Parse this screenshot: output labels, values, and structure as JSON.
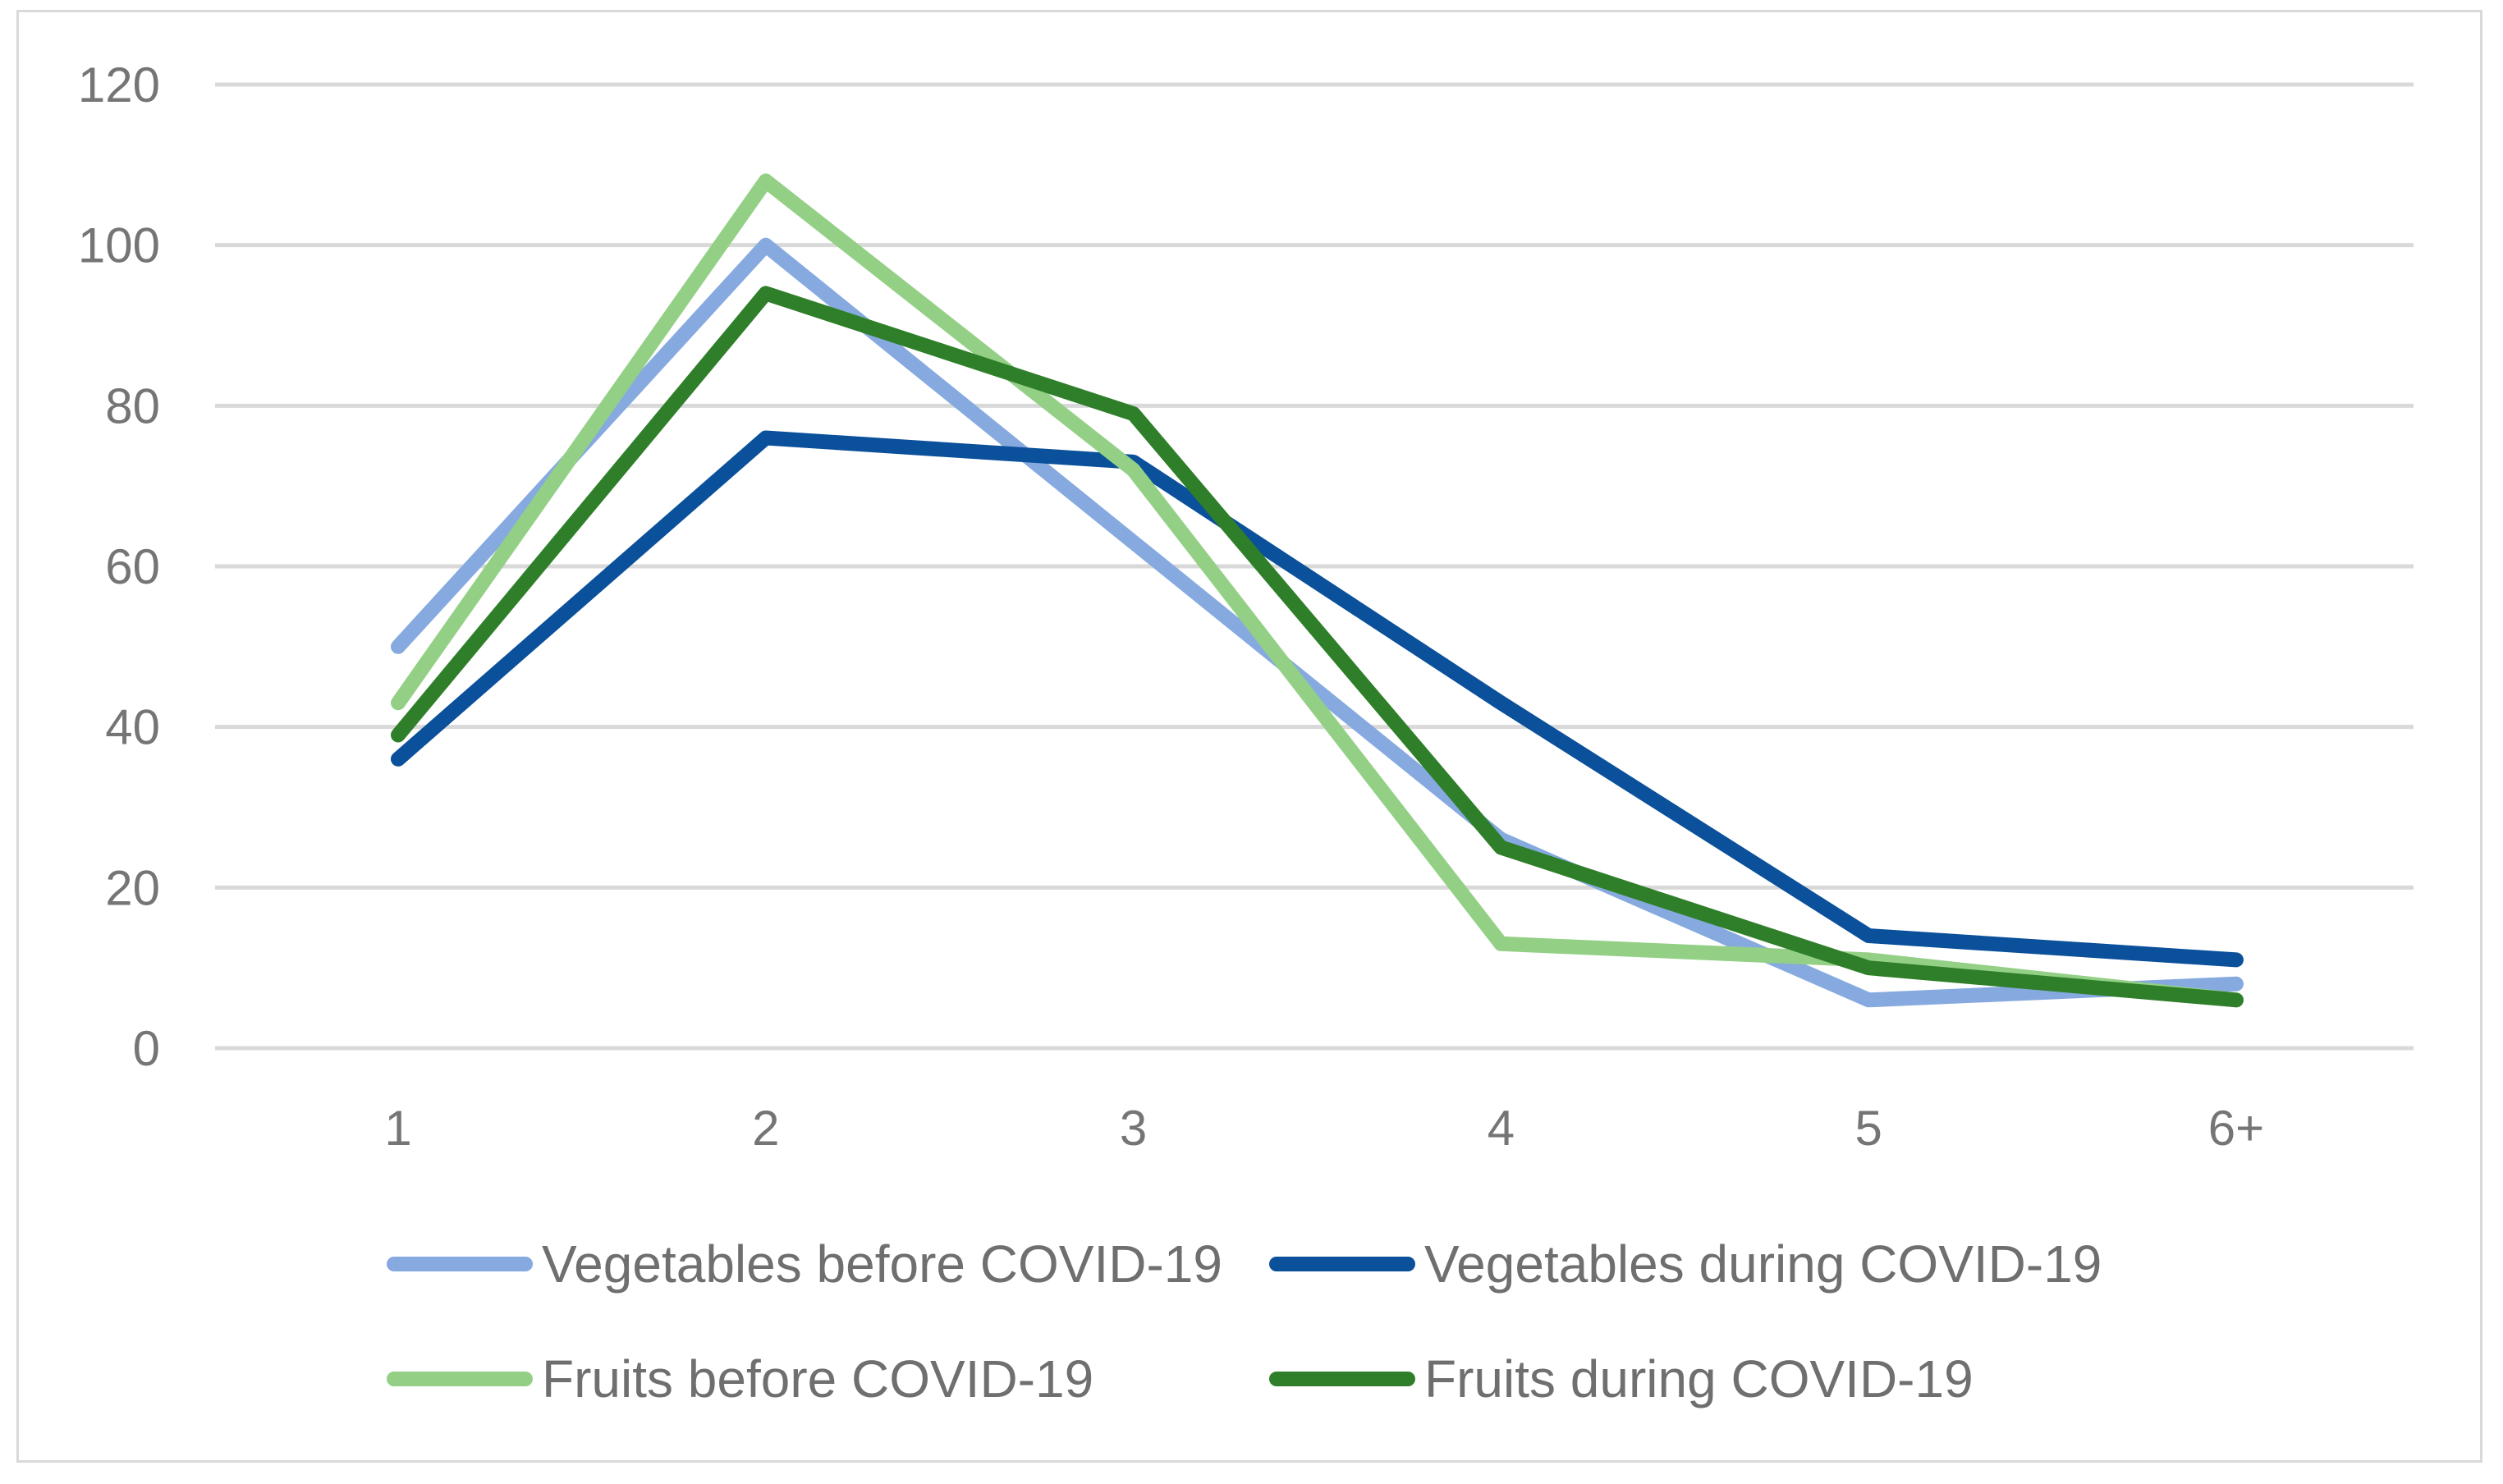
{
  "chart_data": {
    "type": "line",
    "title": "",
    "xlabel": "",
    "ylabel": "",
    "categories": [
      "1",
      "2",
      "3",
      "4",
      "5",
      "6+"
    ],
    "ylim": [
      0,
      120
    ],
    "yticks": [
      "0",
      "20",
      "40",
      "60",
      "80",
      "100",
      "120"
    ],
    "grid": true,
    "legend_position": "bottom",
    "series": [
      {
        "name": "Vegetables before COVID-19",
        "color": "#86aadf",
        "values": [
          50,
          100,
          63,
          26,
          6,
          8
        ]
      },
      {
        "name": "Vegetables during COVID-19",
        "color": "#0a509a",
        "values": [
          36,
          76,
          73,
          43,
          14,
          11
        ]
      },
      {
        "name": "Fruits before COVID-19",
        "color": "#93d086",
        "values": [
          43,
          108,
          72,
          13,
          11,
          6
        ]
      },
      {
        "name": "Fruits during COVID-19",
        "color": "#2f7f2a",
        "values": [
          39,
          94,
          79,
          25,
          10,
          6
        ]
      }
    ]
  }
}
